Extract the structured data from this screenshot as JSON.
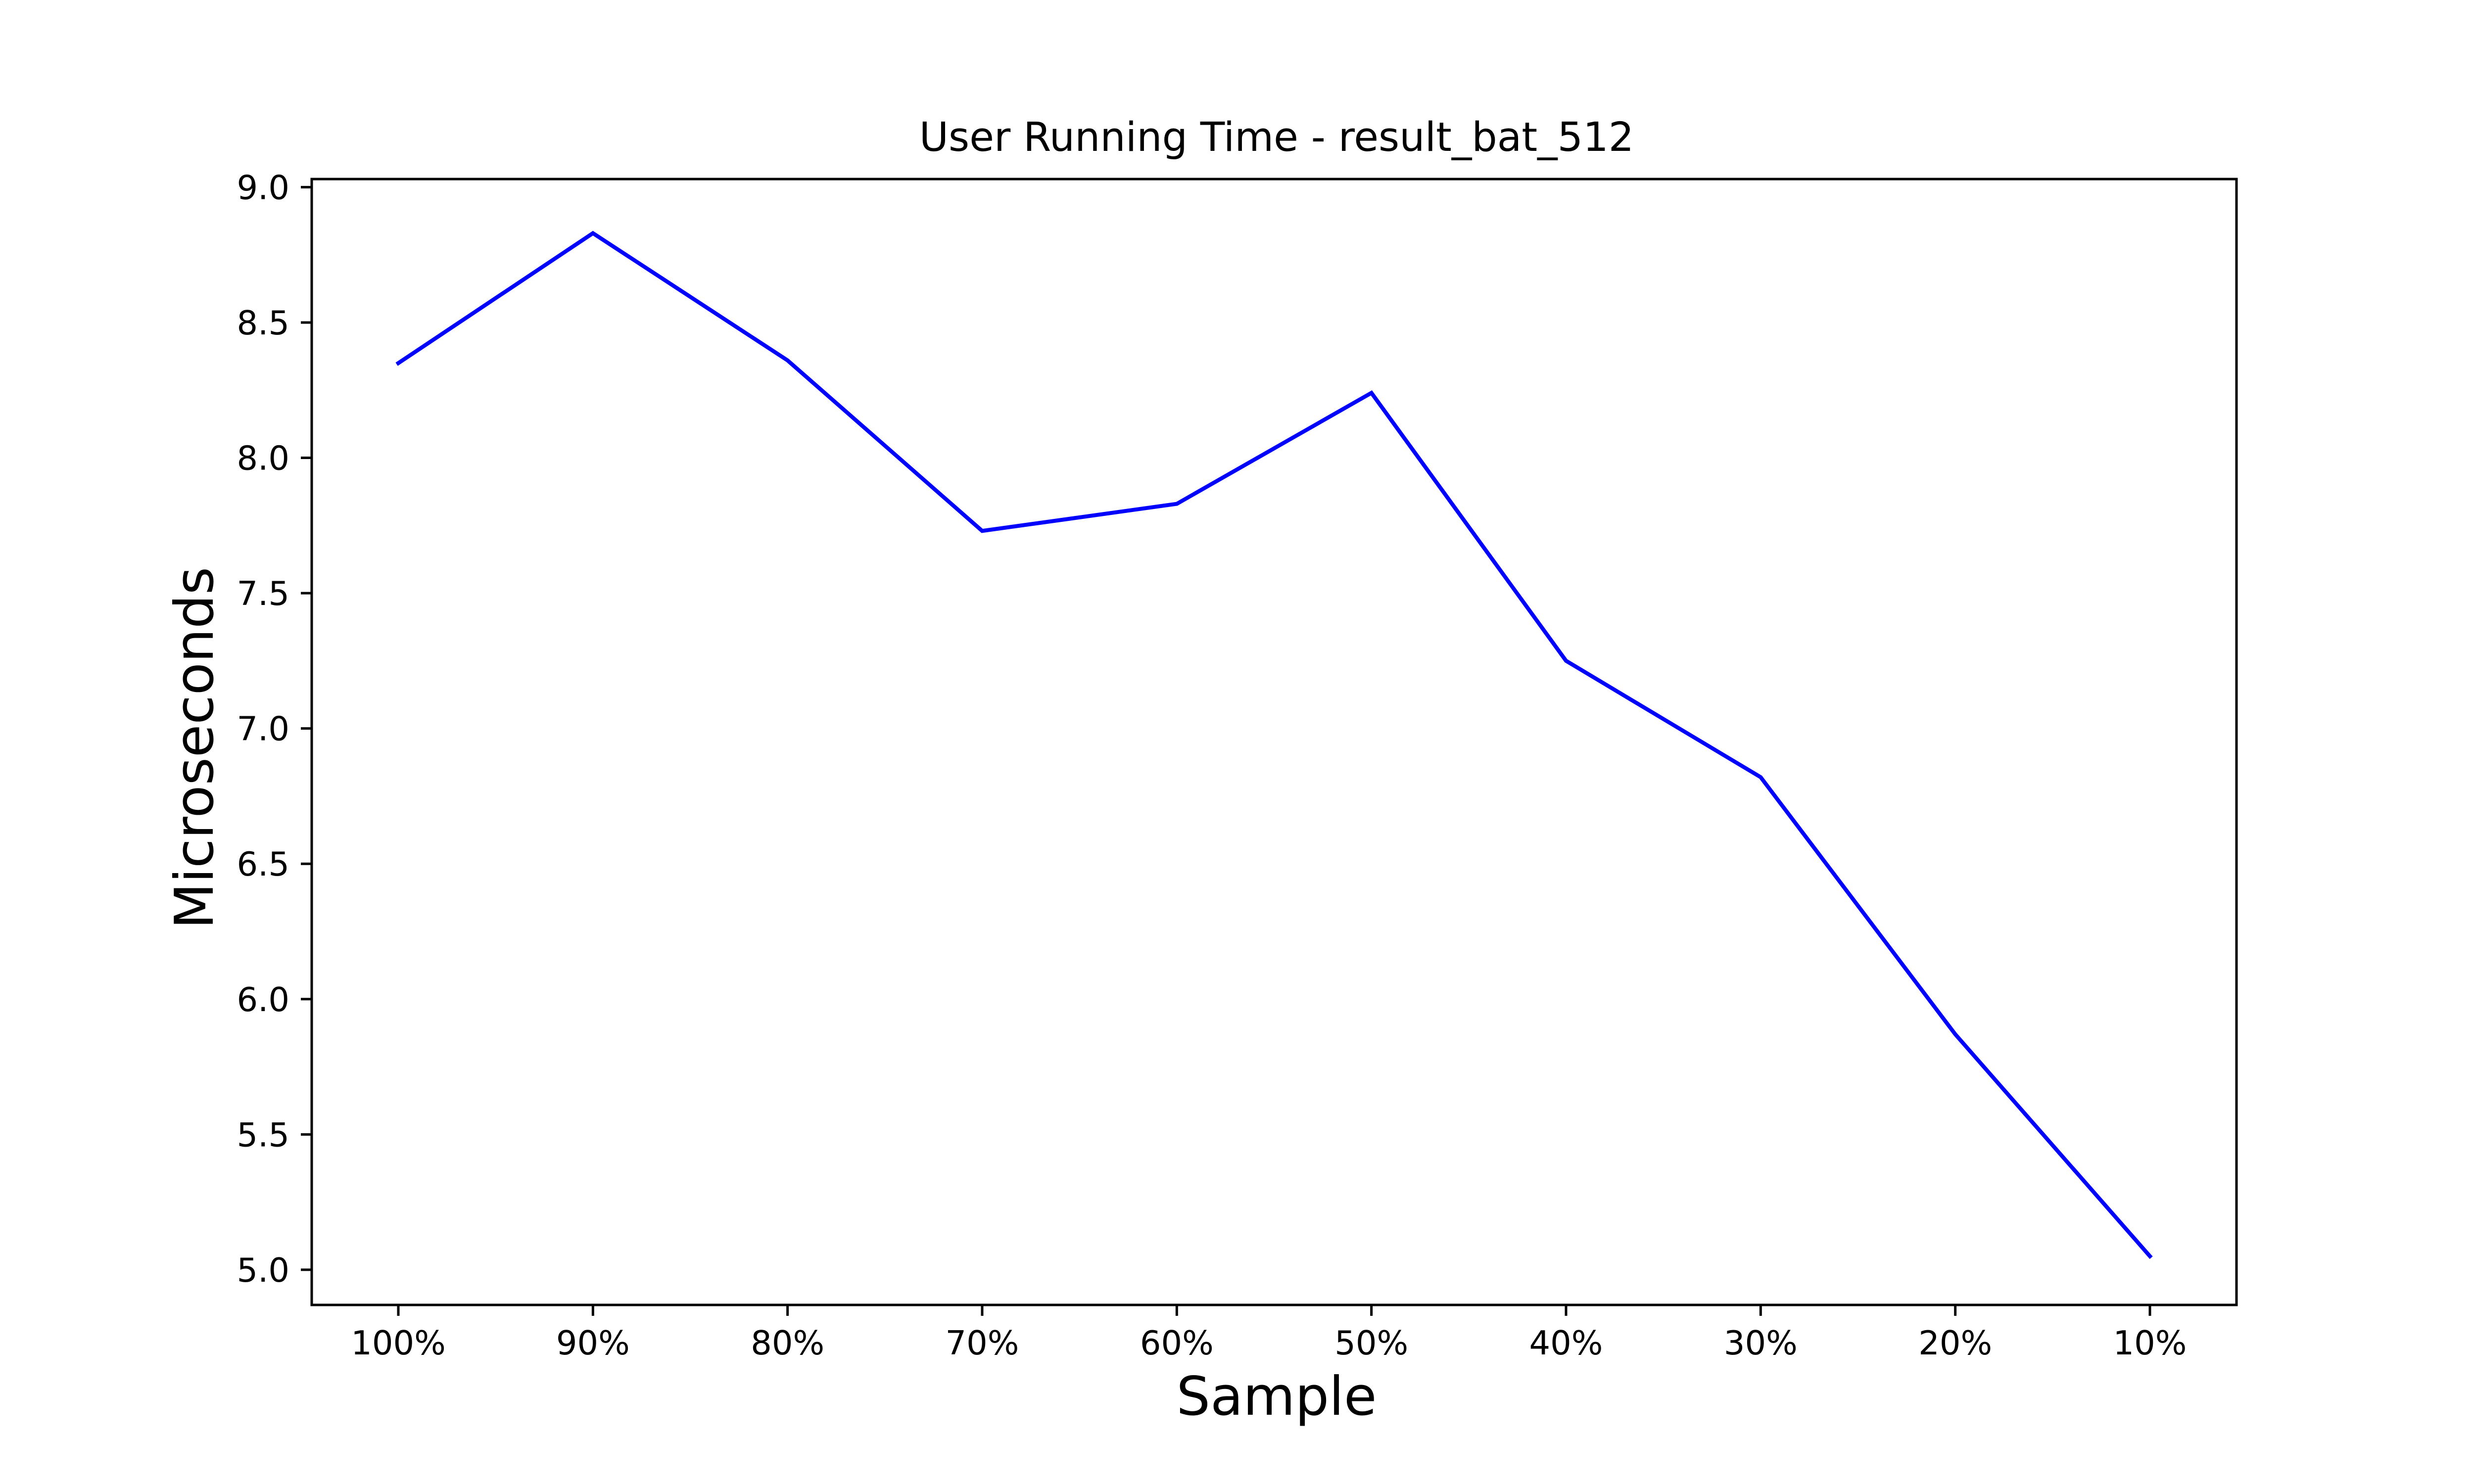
{
  "chart_data": {
    "type": "line",
    "title": "User Running Time - result_bat_512",
    "xlabel": "Sample",
    "ylabel": "Microseconds",
    "categories": [
      "100%",
      "90%",
      "80%",
      "70%",
      "60%",
      "50%",
      "40%",
      "30%",
      "20%",
      "10%"
    ],
    "series": [
      {
        "values": [
          8.35,
          8.83,
          8.36,
          7.73,
          7.83,
          8.24,
          7.25,
          6.82,
          5.87,
          5.05
        ],
        "color": "#0000ff"
      }
    ],
    "ylim": [
      4.87,
      9.03
    ],
    "yticks": [
      "5.0",
      "5.5",
      "6.0",
      "6.5",
      "7.0",
      "7.5",
      "8.0",
      "8.5",
      "9.0"
    ],
    "grid": false,
    "legend": "none"
  }
}
